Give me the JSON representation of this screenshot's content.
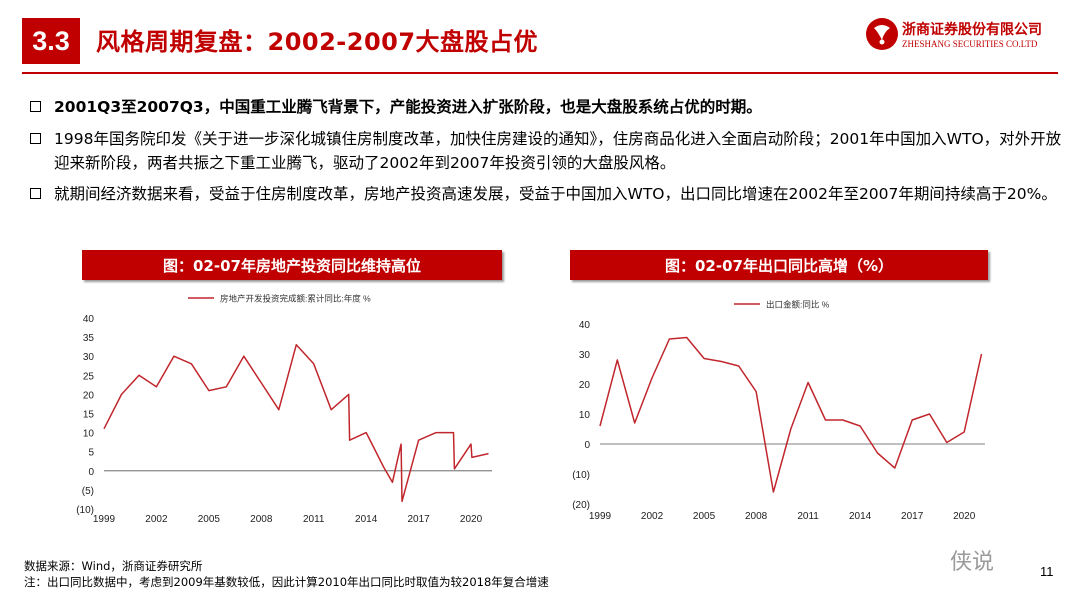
{
  "header": {
    "section_number": "3.3",
    "title": "风格周期复盘：2002-2007大盘股占优",
    "logo_cn": "浙商证券股份有限公司",
    "logo_en": "ZHESHANG SECURITIES CO.LTD"
  },
  "bullets": [
    "2001Q3至2007Q3，中国重工业腾飞背景下，产能投资进入扩张阶段，也是大盘股系统占优的时期。",
    "1998年国务院印发《关于进一步深化城镇住房制度改革，加快住房建设的通知》，住房商品化进入全面启动阶段；2001年中国加入WTO，对外开放迎来新阶段，两者共振之下重工业腾飞，驱动了2002年到2007年投资引领的大盘股风格。",
    "就期间经济数据来看，受益于住房制度改革，房地产投资高速发展，受益于中国加入WTO，出口同比增速在2002年至2007年期间持续高于20%。"
  ],
  "colors": {
    "accent": "#c00000",
    "line": "#c0272d"
  },
  "chart_data": [
    {
      "type": "line",
      "title": "图：02-07年房地产投资同比维持高位",
      "legend": "top-center",
      "series": [
        {
          "name": "房地产开发投资完成额:累计同比:年度 %",
          "x": [
            1999,
            2000,
            2001,
            2002,
            2003,
            2004,
            2005,
            2006,
            2007,
            2008,
            2009,
            2010,
            2011,
            2012,
            2013,
            2013.05,
            2014,
            2015,
            2015.5,
            2016,
            2016.05,
            2017,
            2018,
            2019,
            2019.05,
            2020,
            2020.05,
            2021
          ],
          "values": [
            11,
            20,
            25,
            22,
            30,
            28,
            21,
            22,
            30,
            23,
            16,
            33,
            28,
            16,
            20,
            8,
            10,
            1,
            -3,
            7,
            -8,
            8,
            10,
            10,
            0.5,
            7,
            3.5,
            4.5
          ]
        }
      ],
      "xticks": [
        "1999",
        "2002",
        "2005",
        "2008",
        "2011",
        "2014",
        "2017",
        "2020"
      ],
      "yticks": [
        "40",
        "35",
        "30",
        "25",
        "20",
        "15",
        "10",
        "5",
        "0",
        "(5)",
        "(10)"
      ],
      "ylim": [
        -10,
        40
      ],
      "xlim": [
        1999,
        2021.2
      ]
    },
    {
      "type": "line",
      "title": "图：02-07年出口同比高增（%）",
      "legend": "top-center",
      "series": [
        {
          "name": "出口金额:同比 %",
          "x": [
            1999,
            2000,
            2001,
            2002,
            2003,
            2004,
            2005,
            2006,
            2007,
            2008,
            2009,
            2010,
            2011,
            2012,
            2013,
            2014,
            2015,
            2016,
            2017,
            2018,
            2019,
            2020,
            2021
          ],
          "values": [
            6,
            28,
            7,
            22,
            35,
            35.5,
            28.5,
            27.5,
            26,
            17.5,
            -16,
            5,
            20.5,
            8,
            8,
            6,
            -3,
            -8,
            8,
            10,
            0.5,
            4,
            30
          ]
        }
      ],
      "xticks": [
        "1999",
        "2002",
        "2005",
        "2008",
        "2011",
        "2014",
        "2017",
        "2020"
      ],
      "yticks": [
        "40",
        "30",
        "20",
        "10",
        "0",
        "(10)",
        "(20)"
      ],
      "ylim": [
        -20,
        40
      ],
      "xlim": [
        1999,
        2021.2
      ]
    }
  ],
  "footer": {
    "source": "数据来源：Wind，浙商证券研究所",
    "note": "注：出口同比数据中，考虑到2009年基数较低，因此计算2010年出口同比时取值为较2018年复合增速",
    "watermark": "侠说",
    "page_number": "11"
  }
}
